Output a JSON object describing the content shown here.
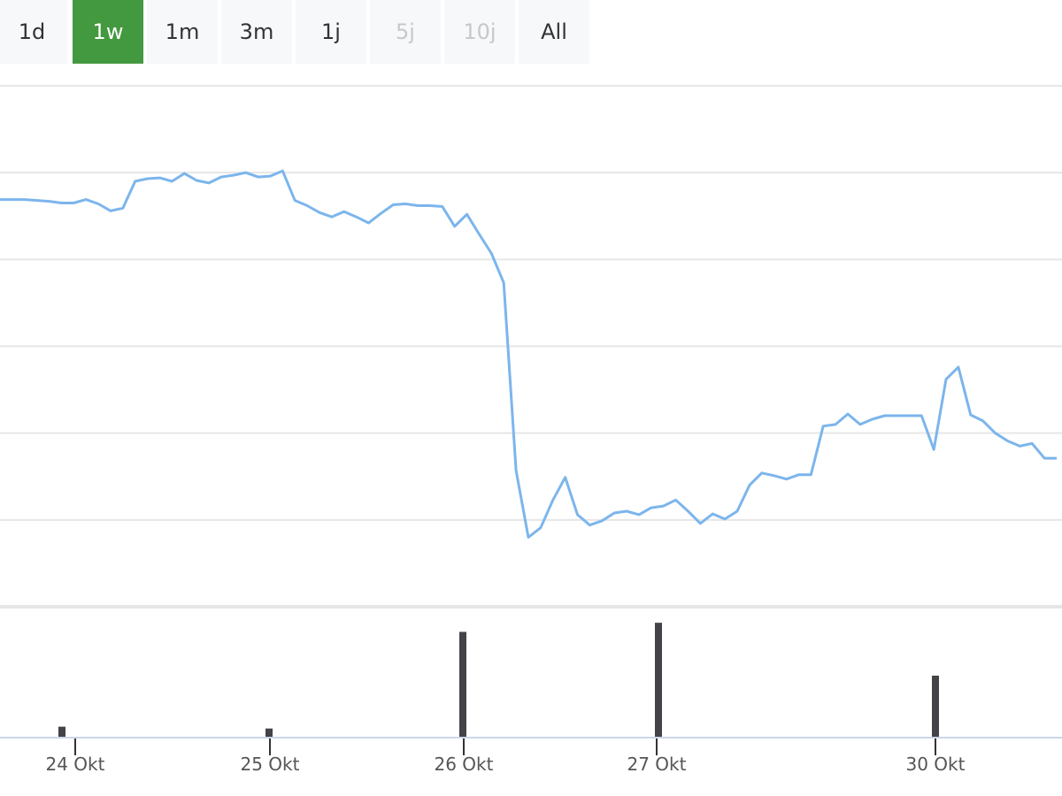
{
  "range_selector": {
    "buttons": [
      {
        "label": "1d",
        "state": "normal"
      },
      {
        "label": "1w",
        "state": "active"
      },
      {
        "label": "1m",
        "state": "normal"
      },
      {
        "label": "3m",
        "state": "normal"
      },
      {
        "label": "1j",
        "state": "normal"
      },
      {
        "label": "5j",
        "state": "disabled"
      },
      {
        "label": "10j",
        "state": "disabled"
      },
      {
        "label": "All",
        "state": "normal"
      }
    ],
    "active_color": "#43993f"
  },
  "chart_data": [
    {
      "type": "line",
      "title": "",
      "xlabel": "",
      "ylabel": "",
      "grid": true,
      "ylim": [
        0,
        6
      ],
      "color": "#7cb5ec",
      "values": [
        4.69,
        4.69,
        4.69,
        4.68,
        4.67,
        4.65,
        4.65,
        4.69,
        4.64,
        4.56,
        4.59,
        4.9,
        4.93,
        4.94,
        4.9,
        4.99,
        4.91,
        4.88,
        4.95,
        4.97,
        5.0,
        4.95,
        4.96,
        5.02,
        4.68,
        4.62,
        4.54,
        4.49,
        4.55,
        4.49,
        4.42,
        4.53,
        4.63,
        4.64,
        4.62,
        4.62,
        4.61,
        4.38,
        4.52,
        4.29,
        4.07,
        3.73,
        1.57,
        0.8,
        0.91,
        1.23,
        1.49,
        1.06,
        0.94,
        0.99,
        1.08,
        1.1,
        1.06,
        1.14,
        1.16,
        1.23,
        1.1,
        0.96,
        1.07,
        1.01,
        1.1,
        1.4,
        1.54,
        1.51,
        1.47,
        1.52,
        1.52,
        2.08,
        2.1,
        2.22,
        2.1,
        2.16,
        2.2,
        2.2,
        2.2,
        2.2,
        1.81,
        2.62,
        2.76,
        2.21,
        2.14,
        2.0,
        1.91,
        1.85,
        1.88,
        1.71,
        1.71
      ]
    },
    {
      "type": "bar",
      "title": "",
      "color": "#434348",
      "ylim": [
        0,
        130
      ],
      "categories": [
        "24 Okt",
        "25 Okt",
        "26 Okt",
        "27 Okt",
        "30 Okt"
      ],
      "values": [
        12,
        10,
        116,
        126,
        68
      ]
    }
  ],
  "x_axis": {
    "tick_labels": [
      "24 Okt",
      "25 Okt",
      "26 Okt",
      "27 Okt",
      "30 Okt"
    ]
  }
}
